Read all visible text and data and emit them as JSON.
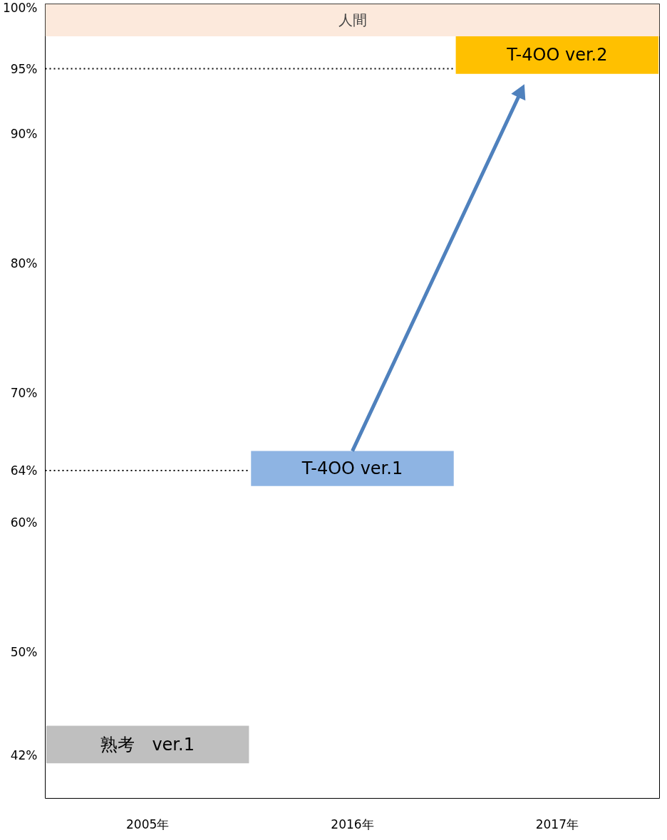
{
  "chart_data": {
    "type": "bar",
    "categories": [
      "2005年",
      "2016年",
      "2017年"
    ],
    "base": [
      41.4,
      62.8,
      94.6
    ],
    "values": [
      2.9,
      2.7,
      2.9
    ],
    "colors": [
      "#bfbfbf",
      "#8eb4e3",
      "#ffc000"
    ],
    "value_labels": [
      "熟考　ver.1",
      "T-4OO ver.1",
      "T-4OO ver.2"
    ],
    "ylim": [
      38.7,
      100
    ],
    "yticks": [
      {
        "value": 42,
        "label": "42%"
      },
      {
        "value": 50,
        "label": "50%"
      },
      {
        "value": 60,
        "label": "60%"
      },
      {
        "value": 64,
        "label": "64%"
      },
      {
        "value": 70,
        "label": "70%"
      },
      {
        "value": 80,
        "label": "80%"
      },
      {
        "value": 90,
        "label": "90%"
      },
      {
        "value": 95,
        "label": "95%"
      },
      {
        "value": 100,
        "label": "100%"
      }
    ],
    "bands": [
      {
        "axis": "y",
        "from": 97.5,
        "to": 100,
        "label": "人間",
        "color": "#fce9dc"
      }
    ],
    "ref_lines": [
      {
        "axis": "y",
        "value": 64,
        "line_style": "dotted"
      },
      {
        "axis": "y",
        "value": 95,
        "line_style": "dotted"
      }
    ]
  }
}
